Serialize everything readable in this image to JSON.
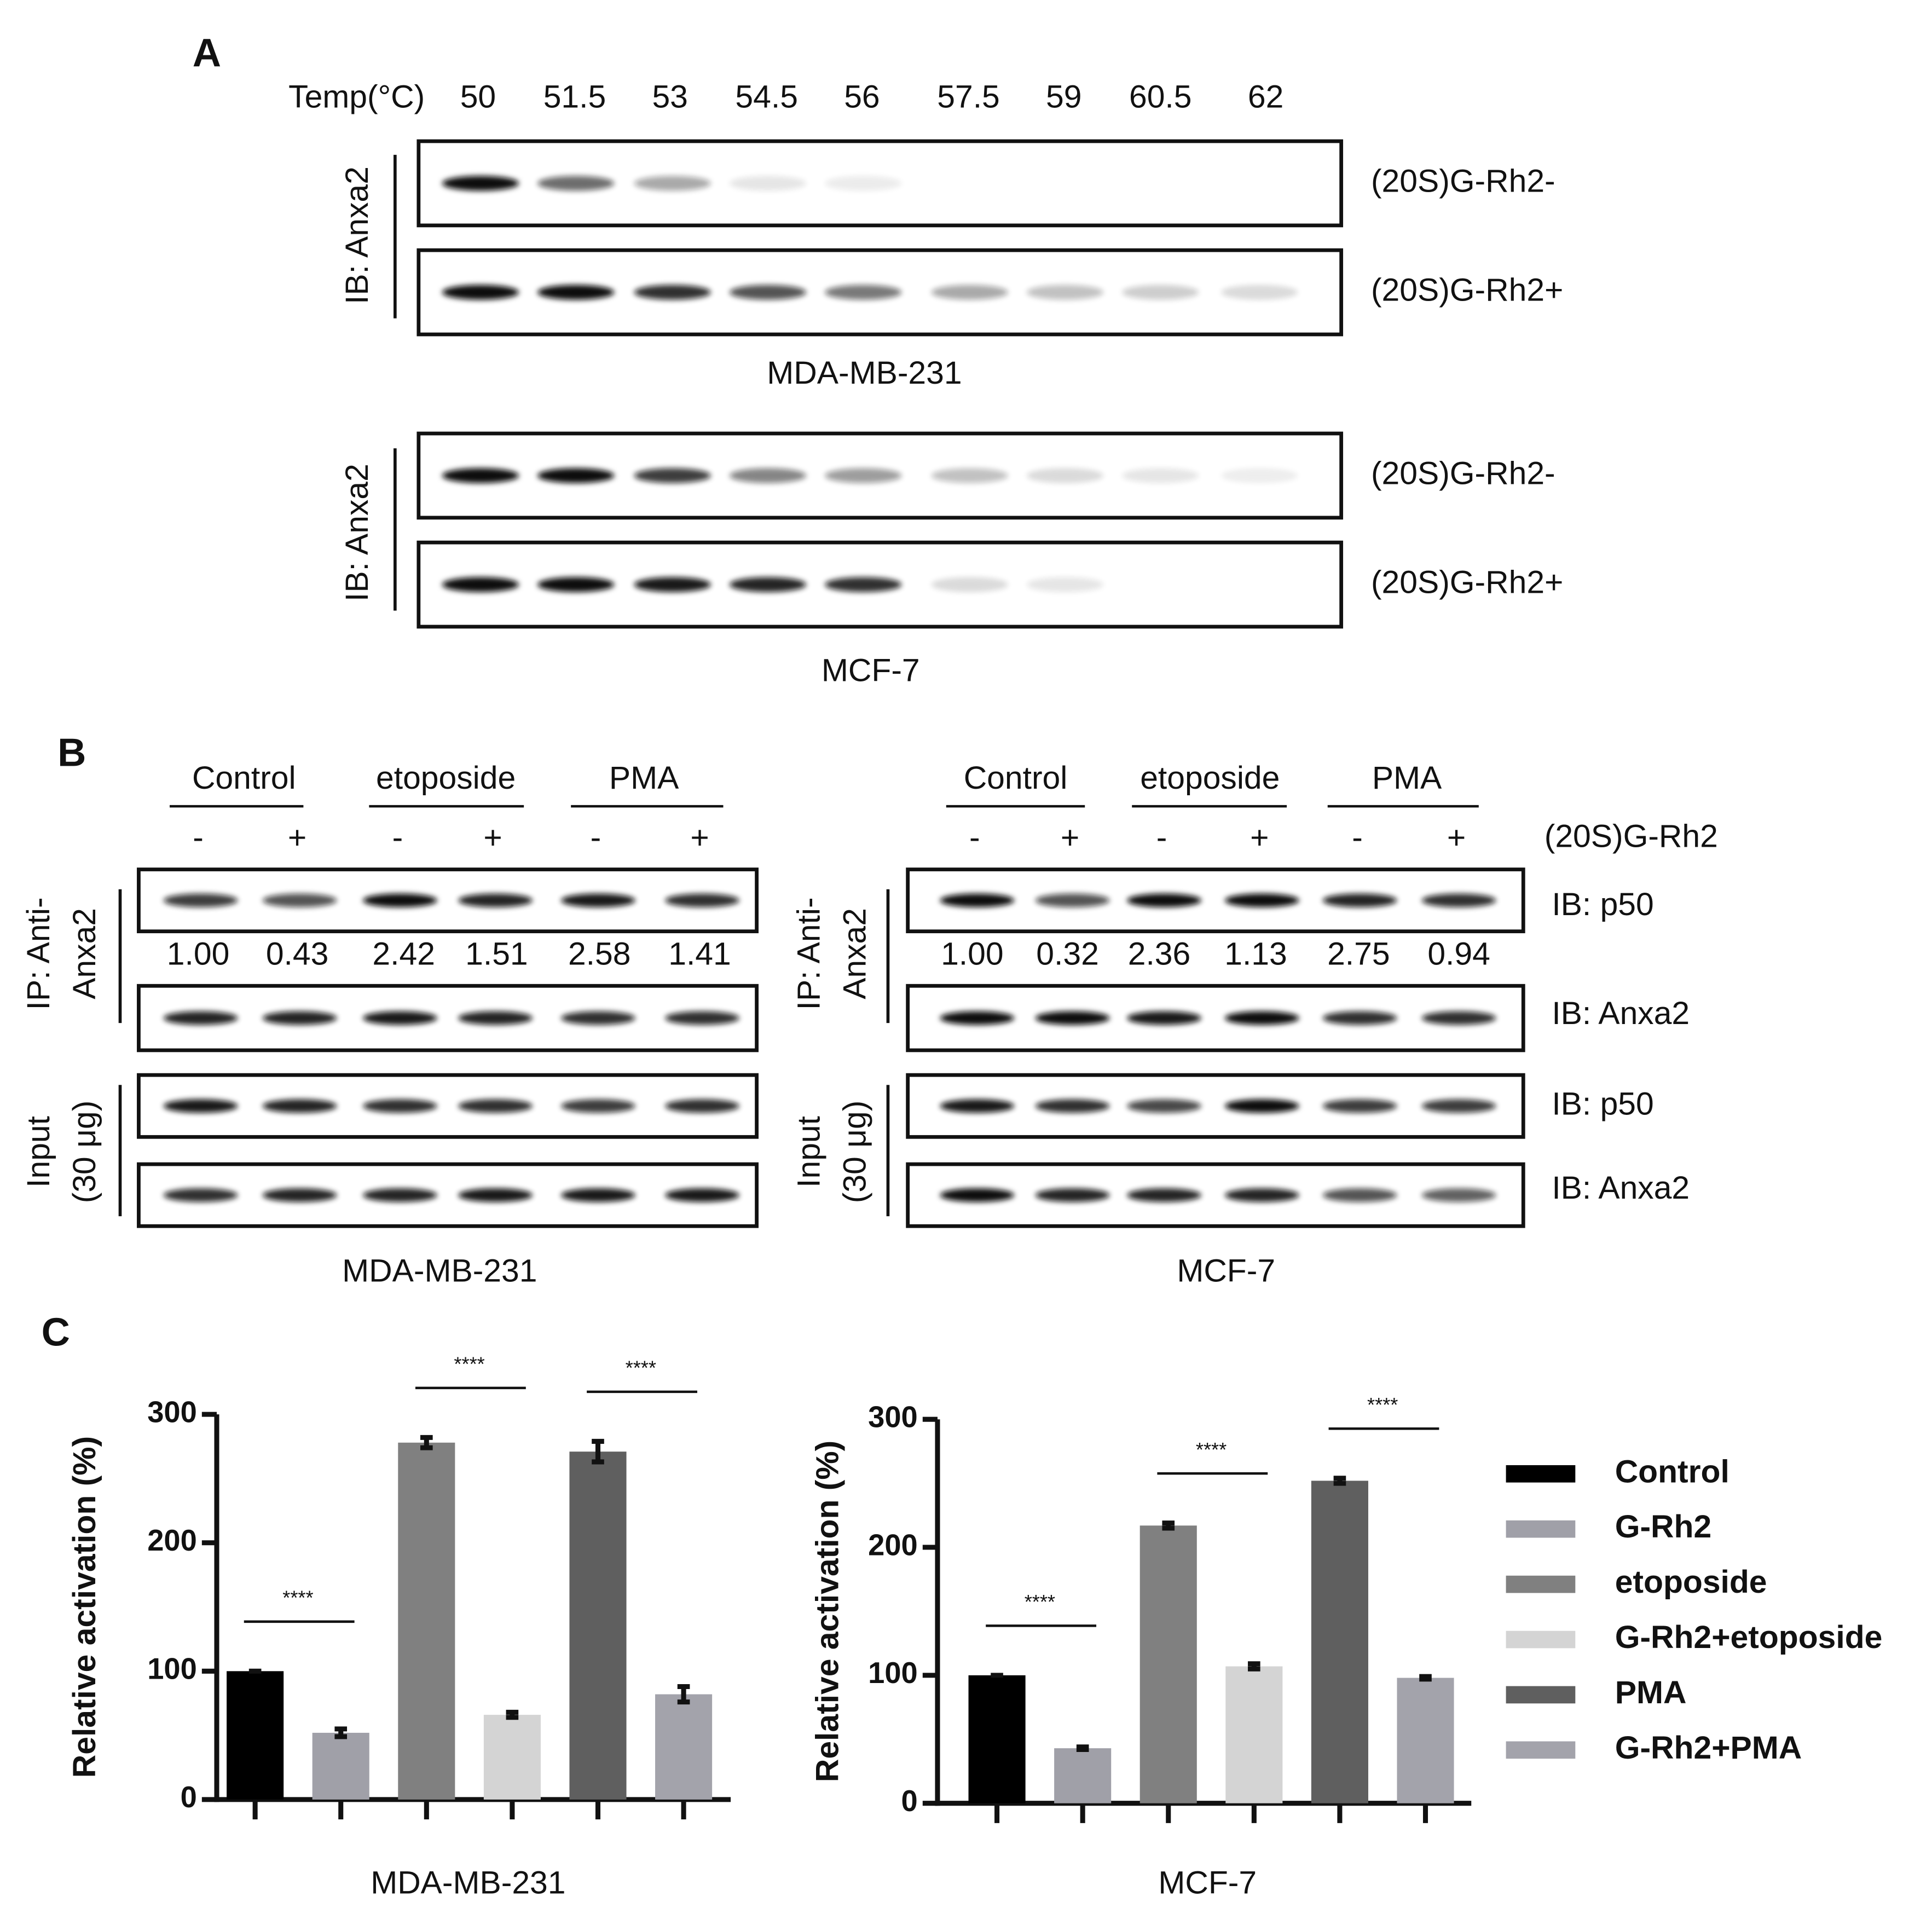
{
  "panel_a": {
    "label": "A",
    "temp_label": "Temp(°C)",
    "temps": [
      50,
      51.5,
      53,
      54.5,
      56,
      57.5,
      59,
      60.5,
      62
    ],
    "blots": [
      {
        "antibody": "IB: Anxa2",
        "rows": [
          "(20S)G-Rh2-",
          "(20S)G-Rh2+"
        ],
        "cell_line": "MDA-MB-231"
      },
      {
        "antibody": "IB: Anxa2",
        "rows": [
          "(20S)G-Rh2-",
          "(20S)G-Rh2+"
        ],
        "cell_line": "MCF-7"
      }
    ]
  },
  "panel_b": {
    "label": "B",
    "treatment": "(20S)G-Rh2",
    "blots": [
      {
        "groups": [
          "Control",
          "etoposide",
          "PMA"
        ],
        "signs": [
          "-",
          "+",
          "-",
          "+",
          "-",
          "+"
        ],
        "ip_label": [
          "IP: Anti-",
          "Anxa2"
        ],
        "ratios": [
          "1.00",
          "0.43",
          "2.42",
          "1.51",
          "2.58",
          "1.41"
        ],
        "input_label": [
          "Input",
          "(30 μg)"
        ],
        "cell_line": "MDA-MB-231"
      },
      {
        "groups": [
          "Control",
          "etoposide",
          "PMA"
        ],
        "signs": [
          "-",
          "+",
          "-",
          "+",
          "-",
          "+"
        ],
        "ip_label": [
          "IP: Anti-",
          "Anxa2"
        ],
        "ratios": [
          "1.00",
          "0.32",
          "2.36",
          "1.13",
          "2.75",
          "0.94"
        ],
        "input_label": [
          "Input",
          "(30 μg)"
        ],
        "cell_line": "MCF-7",
        "rows": [
          "IB: p50",
          "IB: Anxa2",
          "IB: p50",
          "IB: Anxa2"
        ]
      }
    ]
  },
  "panel_c": {
    "label": "C"
  },
  "chart_data": [
    {
      "type": "bar",
      "ylabel": "Relative activation (%)",
      "xlabel": "MDA-MB-231",
      "ylim": [
        0,
        300
      ],
      "yticks": [
        0,
        100,
        200,
        300
      ],
      "categories": [
        null
      ],
      "series": [
        {
          "color": "#000000",
          "values": [
            100
          ],
          "errors": [
            0
          ]
        },
        {
          "color": "#a0a0a8",
          "values": [
            52
          ],
          "errors": [
            3
          ]
        },
        {
          "color": "#808080",
          "values": [
            278
          ],
          "errors": [
            4
          ]
        },
        {
          "color": "#d4d4d4",
          "values": [
            66
          ],
          "errors": [
            2
          ]
        },
        {
          "color": "#5f5f5f",
          "values": [
            271
          ],
          "errors": [
            8
          ]
        },
        {
          "color": "#a3a3ab",
          "values": [
            82
          ],
          "errors": [
            6
          ]
        }
      ],
      "annotations": [
        "****",
        "****",
        "****"
      ]
    },
    {
      "type": "bar",
      "ylabel": "Relative activation (%)",
      "xlabel": "MCF-7",
      "ylim": [
        0,
        300
      ],
      "yticks": [
        0,
        100,
        200,
        300
      ],
      "categories": [
        null
      ],
      "legend": "right",
      "series": [
        {
          "name": "Control",
          "color": "#000000",
          "values": [
            100
          ],
          "errors": [
            0
          ]
        },
        {
          "name": "G-Rh2",
          "color": "#a0a0a8",
          "values": [
            43
          ],
          "errors": [
            1
          ]
        },
        {
          "name": "etoposide",
          "color": "#808080",
          "values": [
            217
          ],
          "errors": [
            2
          ]
        },
        {
          "name": "G-Rh2+etoposide",
          "color": "#d4d4d4",
          "values": [
            107
          ],
          "errors": [
            2
          ]
        },
        {
          "name": "PMA",
          "color": "#5f5f5f",
          "values": [
            252
          ],
          "errors": [
            2
          ]
        },
        {
          "name": "G-Rh2+PMA",
          "color": "#a3a3ab",
          "values": [
            98
          ],
          "errors": [
            1
          ]
        }
      ],
      "annotations": [
        "****",
        "****",
        "****"
      ]
    }
  ]
}
